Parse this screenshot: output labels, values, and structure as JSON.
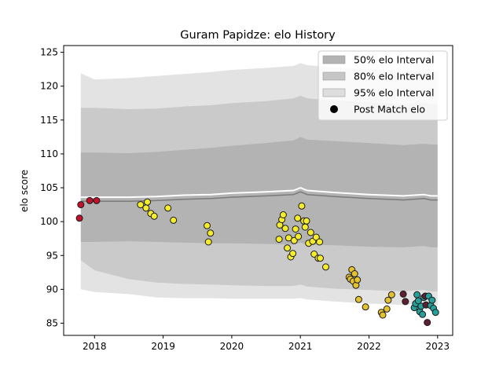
{
  "chart_data": {
    "type": "scatter",
    "title": "Guram Papidze: elo History",
    "xlabel": "",
    "ylabel": "elo score",
    "xlim": [
      2017.55,
      2023.22
    ],
    "ylim": [
      83.2,
      126.0
    ],
    "x_ticks": [
      2018,
      2019,
      2020,
      2021,
      2022,
      2023
    ],
    "x_tick_labels": [
      "2018",
      "2019",
      "2020",
      "2021",
      "2022",
      "2023"
    ],
    "y_ticks": [
      85,
      90,
      95,
      100,
      105,
      110,
      115,
      120,
      125
    ],
    "y_tick_labels": [
      "85",
      "90",
      "95",
      "100",
      "105",
      "110",
      "115",
      "120",
      "125"
    ],
    "grid": false,
    "legend_position": "top-right",
    "legend": [
      {
        "label": "50% elo Interval",
        "kind": "band",
        "color": "#a6a6a6"
      },
      {
        "label": "80% elo Interval",
        "kind": "band",
        "color": "#bdbdbd"
      },
      {
        "label": "95% elo Interval",
        "kind": "band",
        "color": "#d9d9d9"
      },
      {
        "label": "Post Match elo",
        "kind": "marker",
        "color": "#000000"
      }
    ],
    "bands": {
      "x": [
        2017.8,
        2018.0,
        2018.5,
        2018.9,
        2019.3,
        2019.7,
        2020.0,
        2020.5,
        2020.9,
        2021.0,
        2021.1,
        2021.5,
        2022.0,
        2022.5,
        2022.8,
        2022.9,
        2023.0
      ],
      "center": [
        103.6,
        103.6,
        103.6,
        103.7,
        103.9,
        104.0,
        104.2,
        104.4,
        104.6,
        105.0,
        104.6,
        104.3,
        104.0,
        103.8,
        104.0,
        103.8,
        103.8
      ],
      "p50_low": [
        97.0,
        97.0,
        97.1,
        97.0,
        96.9,
        96.8,
        96.8,
        96.7,
        96.6,
        96.9,
        96.6,
        96.5,
        96.3,
        96.2,
        96.4,
        96.2,
        96.2
      ],
      "p50_high": [
        110.2,
        110.2,
        110.1,
        110.3,
        110.6,
        110.9,
        111.2,
        111.6,
        112.0,
        112.5,
        112.1,
        111.9,
        111.6,
        111.3,
        111.5,
        111.4,
        111.4
      ],
      "p80_low": [
        94.3,
        92.8,
        91.5,
        91.0,
        90.8,
        90.7,
        90.6,
        90.5,
        90.5,
        90.7,
        90.4,
        90.1,
        89.9,
        89.7,
        89.9,
        89.7,
        89.7
      ],
      "p80_high": [
        116.8,
        116.8,
        116.6,
        116.7,
        117.0,
        117.2,
        117.5,
        117.8,
        118.2,
        118.6,
        118.2,
        117.9,
        117.6,
        117.3,
        117.5,
        117.3,
        117.3
      ],
      "p95_low": [
        90.0,
        89.6,
        89.3,
        88.8,
        88.7,
        88.7,
        88.6,
        88.6,
        88.6,
        88.7,
        88.5,
        88.2,
        87.9,
        87.7,
        87.9,
        87.7,
        87.7
      ],
      "p95_high": [
        121.9,
        121.0,
        121.2,
        121.5,
        121.8,
        122.1,
        122.4,
        122.7,
        123.0,
        123.4,
        123.1,
        122.8,
        122.5,
        122.2,
        122.4,
        122.2,
        122.2
      ]
    },
    "points": [
      {
        "x": 2017.78,
        "y": 100.5,
        "color": "#c0132b"
      },
      {
        "x": 2017.8,
        "y": 102.5,
        "color": "#c0132b"
      },
      {
        "x": 2017.93,
        "y": 103.1,
        "color": "#c0132b"
      },
      {
        "x": 2018.03,
        "y": 103.1,
        "color": "#c0132b"
      },
      {
        "x": 2018.67,
        "y": 102.5,
        "color": "#f5ec2c"
      },
      {
        "x": 2018.75,
        "y": 102.0,
        "color": "#f5ec2c"
      },
      {
        "x": 2018.77,
        "y": 102.9,
        "color": "#f5ec2c"
      },
      {
        "x": 2018.82,
        "y": 101.2,
        "color": "#f5ec2c"
      },
      {
        "x": 2018.87,
        "y": 100.8,
        "color": "#f5ec2c"
      },
      {
        "x": 2019.07,
        "y": 102.0,
        "color": "#f5ec2c"
      },
      {
        "x": 2019.15,
        "y": 100.2,
        "color": "#f5ec2c"
      },
      {
        "x": 2019.64,
        "y": 99.4,
        "color": "#f5ec2c"
      },
      {
        "x": 2019.66,
        "y": 97.0,
        "color": "#f5ec2c"
      },
      {
        "x": 2019.69,
        "y": 98.3,
        "color": "#f5ec2c"
      },
      {
        "x": 2020.69,
        "y": 97.4,
        "color": "#f5ec2c"
      },
      {
        "x": 2020.7,
        "y": 99.5,
        "color": "#f5ec2c"
      },
      {
        "x": 2020.73,
        "y": 100.3,
        "color": "#f5ec2c"
      },
      {
        "x": 2020.75,
        "y": 101.0,
        "color": "#f5ec2c"
      },
      {
        "x": 2020.78,
        "y": 99.0,
        "color": "#f5ec2c"
      },
      {
        "x": 2020.81,
        "y": 96.1,
        "color": "#f5ec2c"
      },
      {
        "x": 2020.83,
        "y": 97.6,
        "color": "#f5ec2c"
      },
      {
        "x": 2020.86,
        "y": 94.8,
        "color": "#f5ec2c"
      },
      {
        "x": 2020.89,
        "y": 95.3,
        "color": "#f5ec2c"
      },
      {
        "x": 2020.91,
        "y": 97.2,
        "color": "#f5ec2c"
      },
      {
        "x": 2020.93,
        "y": 98.9,
        "color": "#f5ec2c"
      },
      {
        "x": 2020.96,
        "y": 100.5,
        "color": "#f5ec2c"
      },
      {
        "x": 2020.97,
        "y": 97.8,
        "color": "#f5ec2c"
      },
      {
        "x": 2021.02,
        "y": 102.3,
        "color": "#f5ec2c"
      },
      {
        "x": 2021.05,
        "y": 100.1,
        "color": "#f5ec2c"
      },
      {
        "x": 2021.07,
        "y": 99.2,
        "color": "#f5ec2c"
      },
      {
        "x": 2021.09,
        "y": 100.1,
        "color": "#f5ec2c"
      },
      {
        "x": 2021.12,
        "y": 96.8,
        "color": "#f5ec2c"
      },
      {
        "x": 2021.15,
        "y": 98.4,
        "color": "#f5ec2c"
      },
      {
        "x": 2021.18,
        "y": 97.1,
        "color": "#f5ec2c"
      },
      {
        "x": 2021.2,
        "y": 95.2,
        "color": "#f5ec2c"
      },
      {
        "x": 2021.23,
        "y": 97.7,
        "color": "#f5ec2c"
      },
      {
        "x": 2021.26,
        "y": 94.6,
        "color": "#f5ec2c"
      },
      {
        "x": 2021.28,
        "y": 97.0,
        "color": "#f5ec2c"
      },
      {
        "x": 2021.29,
        "y": 94.6,
        "color": "#f5ec2c"
      },
      {
        "x": 2021.37,
        "y": 93.3,
        "color": "#f5ec2c"
      },
      {
        "x": 2021.71,
        "y": 91.8,
        "color": "#e4c22d"
      },
      {
        "x": 2021.73,
        "y": 91.5,
        "color": "#e4c22d"
      },
      {
        "x": 2021.75,
        "y": 92.9,
        "color": "#e4c22d"
      },
      {
        "x": 2021.77,
        "y": 91.2,
        "color": "#e4c22d"
      },
      {
        "x": 2021.79,
        "y": 92.3,
        "color": "#e4c22d"
      },
      {
        "x": 2021.81,
        "y": 90.6,
        "color": "#e4c22d"
      },
      {
        "x": 2021.83,
        "y": 91.4,
        "color": "#e4c22d"
      },
      {
        "x": 2021.85,
        "y": 88.5,
        "color": "#e4c22d"
      },
      {
        "x": 2021.95,
        "y": 87.4,
        "color": "#e4c22d"
      },
      {
        "x": 2022.18,
        "y": 86.6,
        "color": "#e4c22d"
      },
      {
        "x": 2022.2,
        "y": 86.2,
        "color": "#e4c22d"
      },
      {
        "x": 2022.26,
        "y": 87.1,
        "color": "#e4c22d"
      },
      {
        "x": 2022.28,
        "y": 88.4,
        "color": "#e4c22d"
      },
      {
        "x": 2022.33,
        "y": 89.2,
        "color": "#e4c22d"
      },
      {
        "x": 2022.5,
        "y": 89.3,
        "color": "#5e1f33"
      },
      {
        "x": 2022.53,
        "y": 88.2,
        "color": "#5e1f33"
      },
      {
        "x": 2022.66,
        "y": 87.3,
        "color": "#27a09b"
      },
      {
        "x": 2022.68,
        "y": 87.9,
        "color": "#27a09b"
      },
      {
        "x": 2022.7,
        "y": 89.2,
        "color": "#27a09b"
      },
      {
        "x": 2022.72,
        "y": 88.3,
        "color": "#27a09b"
      },
      {
        "x": 2022.74,
        "y": 86.7,
        "color": "#27a09b"
      },
      {
        "x": 2022.76,
        "y": 87.5,
        "color": "#27a09b"
      },
      {
        "x": 2022.78,
        "y": 86.3,
        "color": "#27a09b"
      },
      {
        "x": 2022.8,
        "y": 88.8,
        "color": "#27a09b"
      },
      {
        "x": 2022.82,
        "y": 89.0,
        "color": "#5e1f33"
      },
      {
        "x": 2022.83,
        "y": 87.7,
        "color": "#5e1f33"
      },
      {
        "x": 2022.85,
        "y": 85.1,
        "color": "#5e1f33"
      },
      {
        "x": 2022.87,
        "y": 89.0,
        "color": "#27a09b"
      },
      {
        "x": 2022.9,
        "y": 87.6,
        "color": "#27a09b"
      },
      {
        "x": 2022.92,
        "y": 88.4,
        "color": "#27a09b"
      },
      {
        "x": 2022.94,
        "y": 87.2,
        "color": "#27a09b"
      },
      {
        "x": 2022.97,
        "y": 86.6,
        "color": "#27a09b"
      }
    ]
  }
}
